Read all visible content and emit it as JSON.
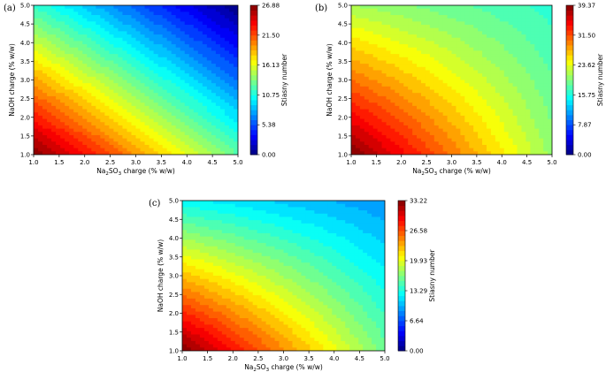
{
  "chart_data": [
    {
      "type": "heatmap",
      "panel_label": "(a)",
      "xlabel": "Na₂SO₃ charge (% w/w)",
      "ylabel": "NaOH charge (% w/w)",
      "colorbar_label": "Stiasny number",
      "xlim": [
        1.0,
        5.0
      ],
      "ylim": [
        1.0,
        5.0
      ],
      "x_ticks": [
        "1.0",
        "1.5",
        "2.0",
        "2.5",
        "3.0",
        "3.5",
        "4.0",
        "4.5",
        "5.0"
      ],
      "y_ticks": [
        "1.0",
        "1.5",
        "2.0",
        "2.5",
        "3.0",
        "3.5",
        "4.0",
        "4.5",
        "5.0"
      ],
      "colorbar_ticks": [
        "0.00",
        "5.38",
        "10.75",
        "16.13",
        "21.50",
        "26.88"
      ],
      "value_range": [
        0.0,
        26.88
      ],
      "corner_values": {
        "x1_y1": 26.88,
        "x5_y1": 12.5,
        "x1_y5": 11.5,
        "x5_y5": 0.0
      },
      "colormap": "jet",
      "contour_levels": 30
    },
    {
      "type": "heatmap",
      "panel_label": "(b)",
      "xlabel": "Na₂SO₃ charge (% w/w)",
      "ylabel": "NaOH charge (% w/w)",
      "colorbar_label": "Stiasny number",
      "xlim": [
        1.0,
        5.0
      ],
      "ylim": [
        1.0,
        5.0
      ],
      "x_ticks": [
        "1.0",
        "1.5",
        "2.0",
        "2.5",
        "3.0",
        "3.5",
        "4.0",
        "4.5",
        "5.0"
      ],
      "y_ticks": [
        "1.0",
        "1.5",
        "2.0",
        "2.5",
        "3.0",
        "3.5",
        "4.0",
        "4.5",
        "5.0"
      ],
      "colorbar_ticks": [
        "0.00",
        "7.87",
        "15.75",
        "23.62",
        "31.50",
        "39.37"
      ],
      "value_range": [
        0.0,
        39.37
      ],
      "corner_values": {
        "x1_y1": 39.37,
        "x5_y1": 20.5,
        "x1_y5": 21.0,
        "x5_y5": 16.5
      },
      "colormap": "jet",
      "contour_levels": 30
    },
    {
      "type": "heatmap",
      "panel_label": "(c)",
      "xlabel": "Na₂SO₃ charge (% w/w)",
      "ylabel": "NaOH charge (% w/w)",
      "colorbar_label": "Stiasny number",
      "xlim": [
        1.0,
        5.0
      ],
      "ylim": [
        1.0,
        5.0
      ],
      "x_ticks": [
        "1.0",
        "1.5",
        "2.0",
        "2.5",
        "3.0",
        "3.5",
        "4.0",
        "4.5",
        "5.0"
      ],
      "y_ticks": [
        "1.0",
        "1.5",
        "2.0",
        "2.5",
        "3.0",
        "3.5",
        "4.0",
        "4.5",
        "5.0"
      ],
      "colorbar_ticks": [
        "0.00",
        "6.64",
        "13.29",
        "19.93",
        "26.58",
        "33.22"
      ],
      "value_range": [
        0.0,
        33.22
      ],
      "corner_values": {
        "x1_y1": 33.22,
        "x5_y1": 16.0,
        "x1_y5": 12.5,
        "x5_y5": 9.0
      },
      "colormap": "jet",
      "contour_levels": 30
    }
  ]
}
